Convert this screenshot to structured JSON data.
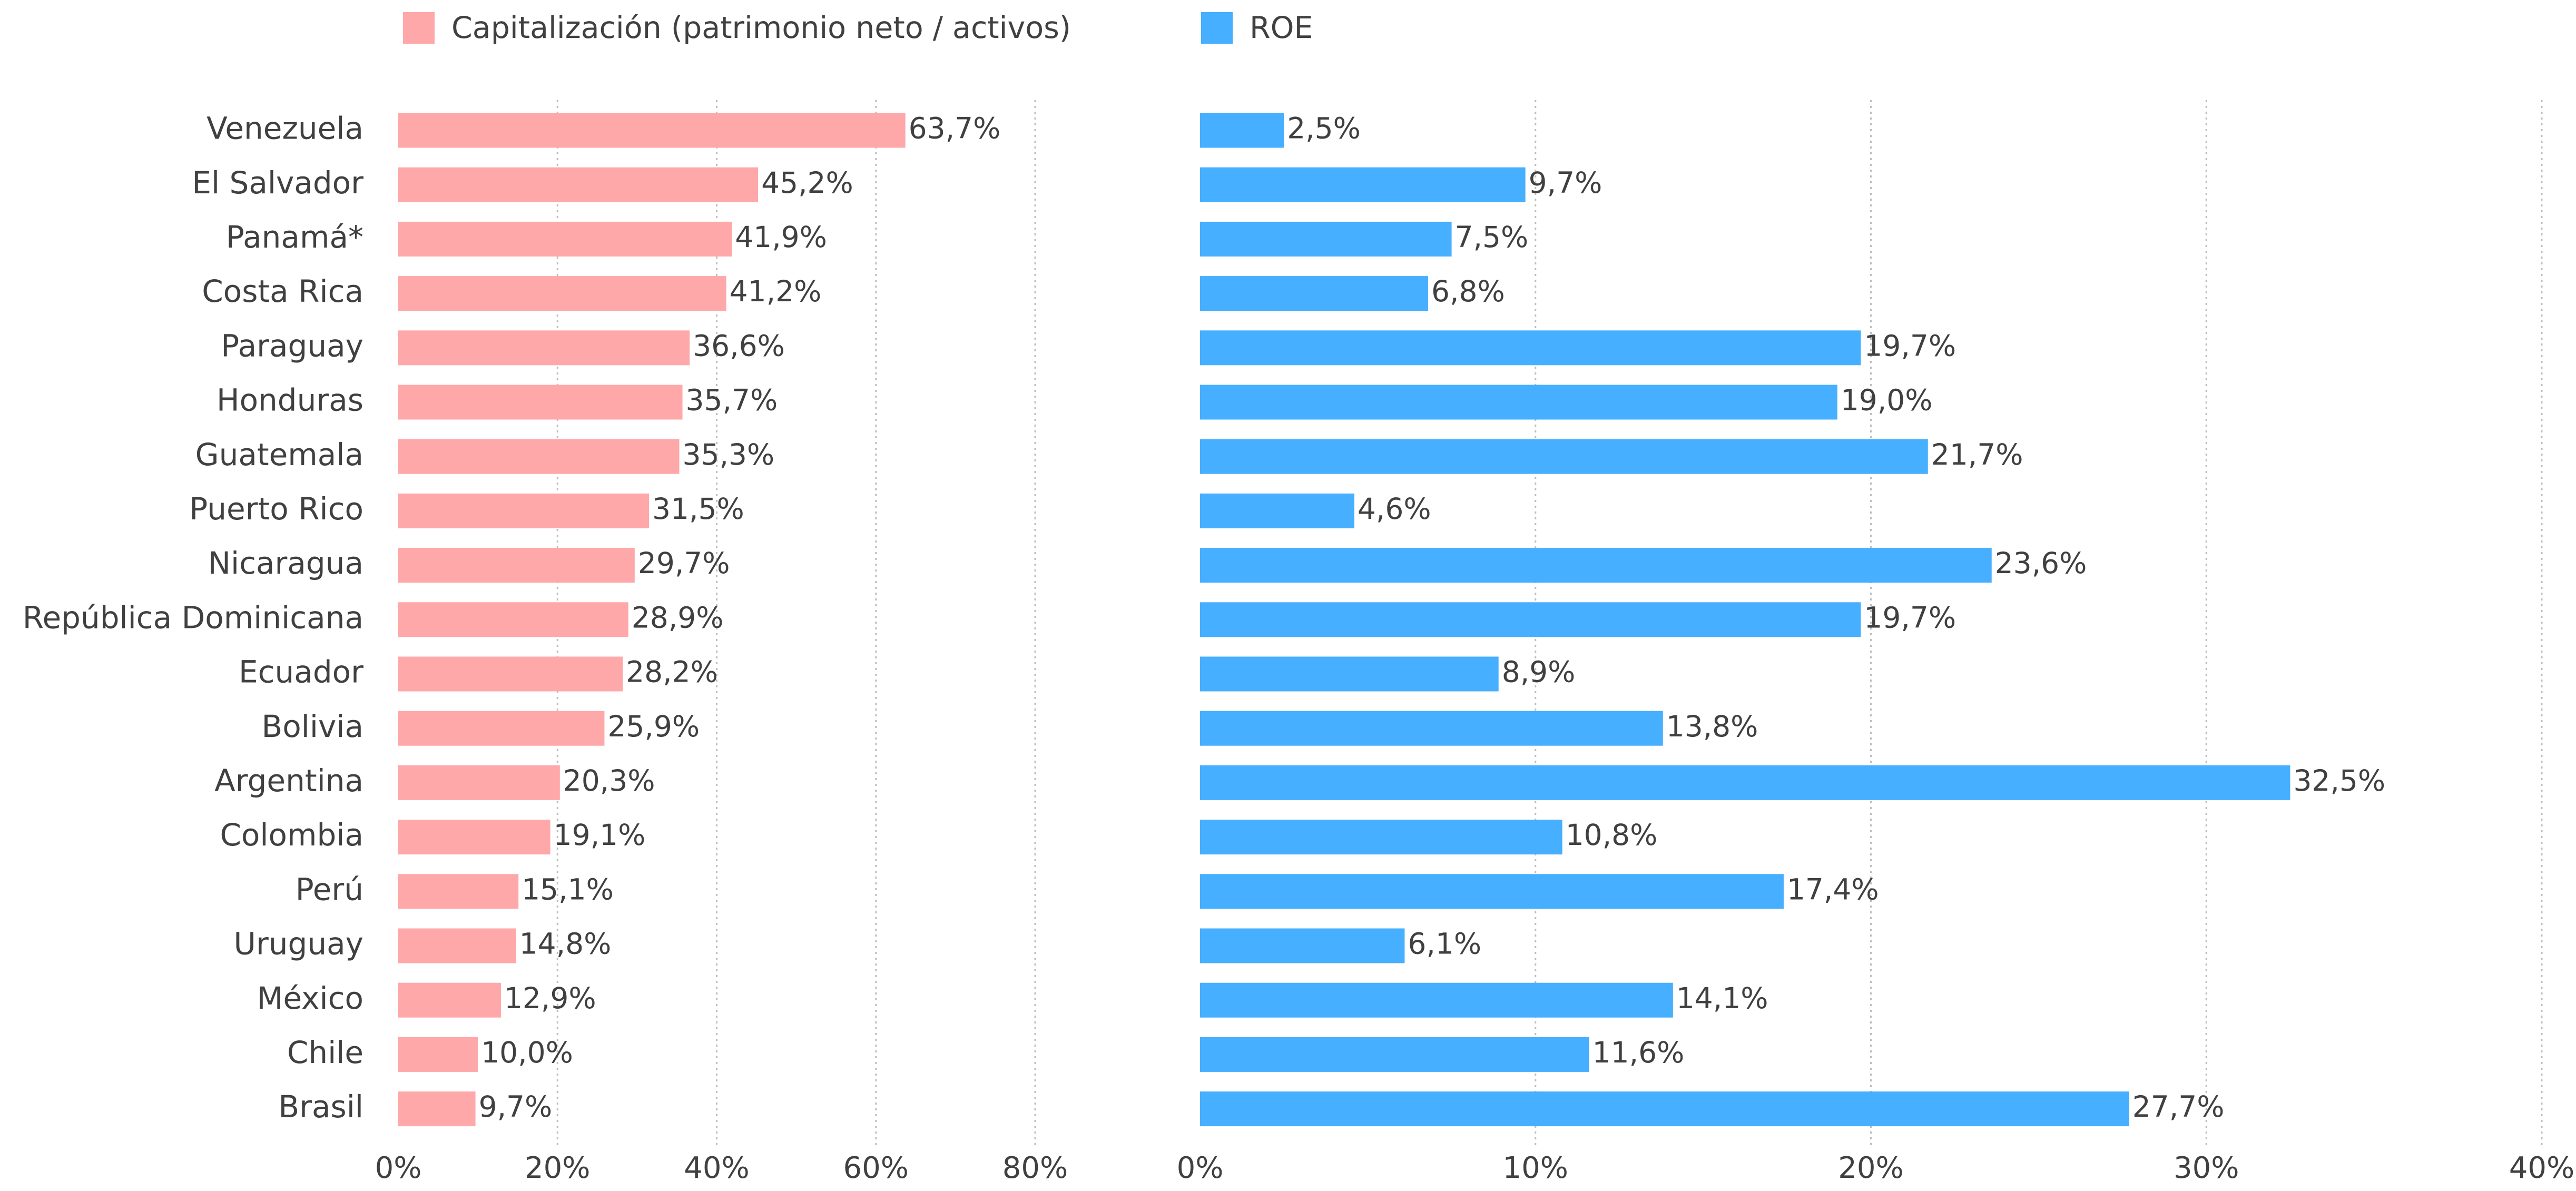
{
  "colors": {
    "capitalizacion": "#ffa8aa",
    "roe": "#46afff",
    "grid": "#bdbdbd",
    "text": "#404040"
  },
  "legend": {
    "capitalizacion_label": "Capitalización (patrimonio neto / activos)",
    "roe_label": "ROE"
  },
  "chart_data": [
    {
      "type": "bar",
      "orientation": "horizontal",
      "series_name": "Capitalización (patrimonio neto / activos)",
      "categories": [
        "Venezuela",
        "El Salvador",
        "Panamá*",
        "Costa Rica",
        "Paraguay",
        "Honduras",
        "Guatemala",
        "Puerto Rico",
        "Nicaragua",
        "República Dominicana",
        "Ecuador",
        "Bolivia",
        "Argentina",
        "Colombia",
        "Perú",
        "Uruguay",
        "México",
        "Chile",
        "Brasil"
      ],
      "values": [
        63.7,
        45.2,
        41.9,
        41.2,
        36.6,
        35.7,
        35.3,
        31.5,
        29.7,
        28.9,
        28.2,
        25.9,
        20.3,
        19.1,
        15.1,
        14.8,
        12.9,
        10.0,
        9.7
      ],
      "value_labels": [
        "63,7%",
        "45,2%",
        "41,9%",
        "41,2%",
        "36,6%",
        "35,7%",
        "35,3%",
        "31,5%",
        "29,7%",
        "28,9%",
        "28,2%",
        "25,9%",
        "20,3%",
        "19,1%",
        "15,1%",
        "14,8%",
        "12,9%",
        "10,0%",
        "9,7%"
      ],
      "xlim": [
        0,
        80
      ],
      "xticks": [
        0,
        20,
        40,
        60,
        80
      ],
      "xtick_labels": [
        "0%",
        "20%",
        "40%",
        "60%",
        "80%"
      ],
      "grid": true
    },
    {
      "type": "bar",
      "orientation": "horizontal",
      "series_name": "ROE",
      "categories": [
        "Venezuela",
        "El Salvador",
        "Panamá*",
        "Costa Rica",
        "Paraguay",
        "Honduras",
        "Guatemala",
        "Puerto Rico",
        "Nicaragua",
        "República Dominicana",
        "Ecuador",
        "Bolivia",
        "Argentina",
        "Colombia",
        "Perú",
        "Uruguay",
        "México",
        "Chile",
        "Brasil"
      ],
      "values": [
        2.5,
        9.7,
        7.5,
        6.8,
        19.7,
        19.0,
        21.7,
        4.6,
        23.6,
        19.7,
        8.9,
        13.8,
        32.5,
        10.8,
        17.4,
        6.1,
        14.1,
        11.6,
        27.7
      ],
      "value_labels": [
        "2,5%",
        "9,7%",
        "7,5%",
        "6,8%",
        "19,7%",
        "19,0%",
        "21,7%",
        "4,6%",
        "23,6%",
        "19,7%",
        "8,9%",
        "13,8%",
        "32,5%",
        "10,8%",
        "17,4%",
        "6,1%",
        "14,1%",
        "11,6%",
        "27,7%"
      ],
      "xlim": [
        0,
        40
      ],
      "xticks": [
        0,
        10,
        20,
        30,
        40
      ],
      "xtick_labels": [
        "0%",
        "10%",
        "20%",
        "30%",
        "40%"
      ],
      "grid": true
    }
  ]
}
